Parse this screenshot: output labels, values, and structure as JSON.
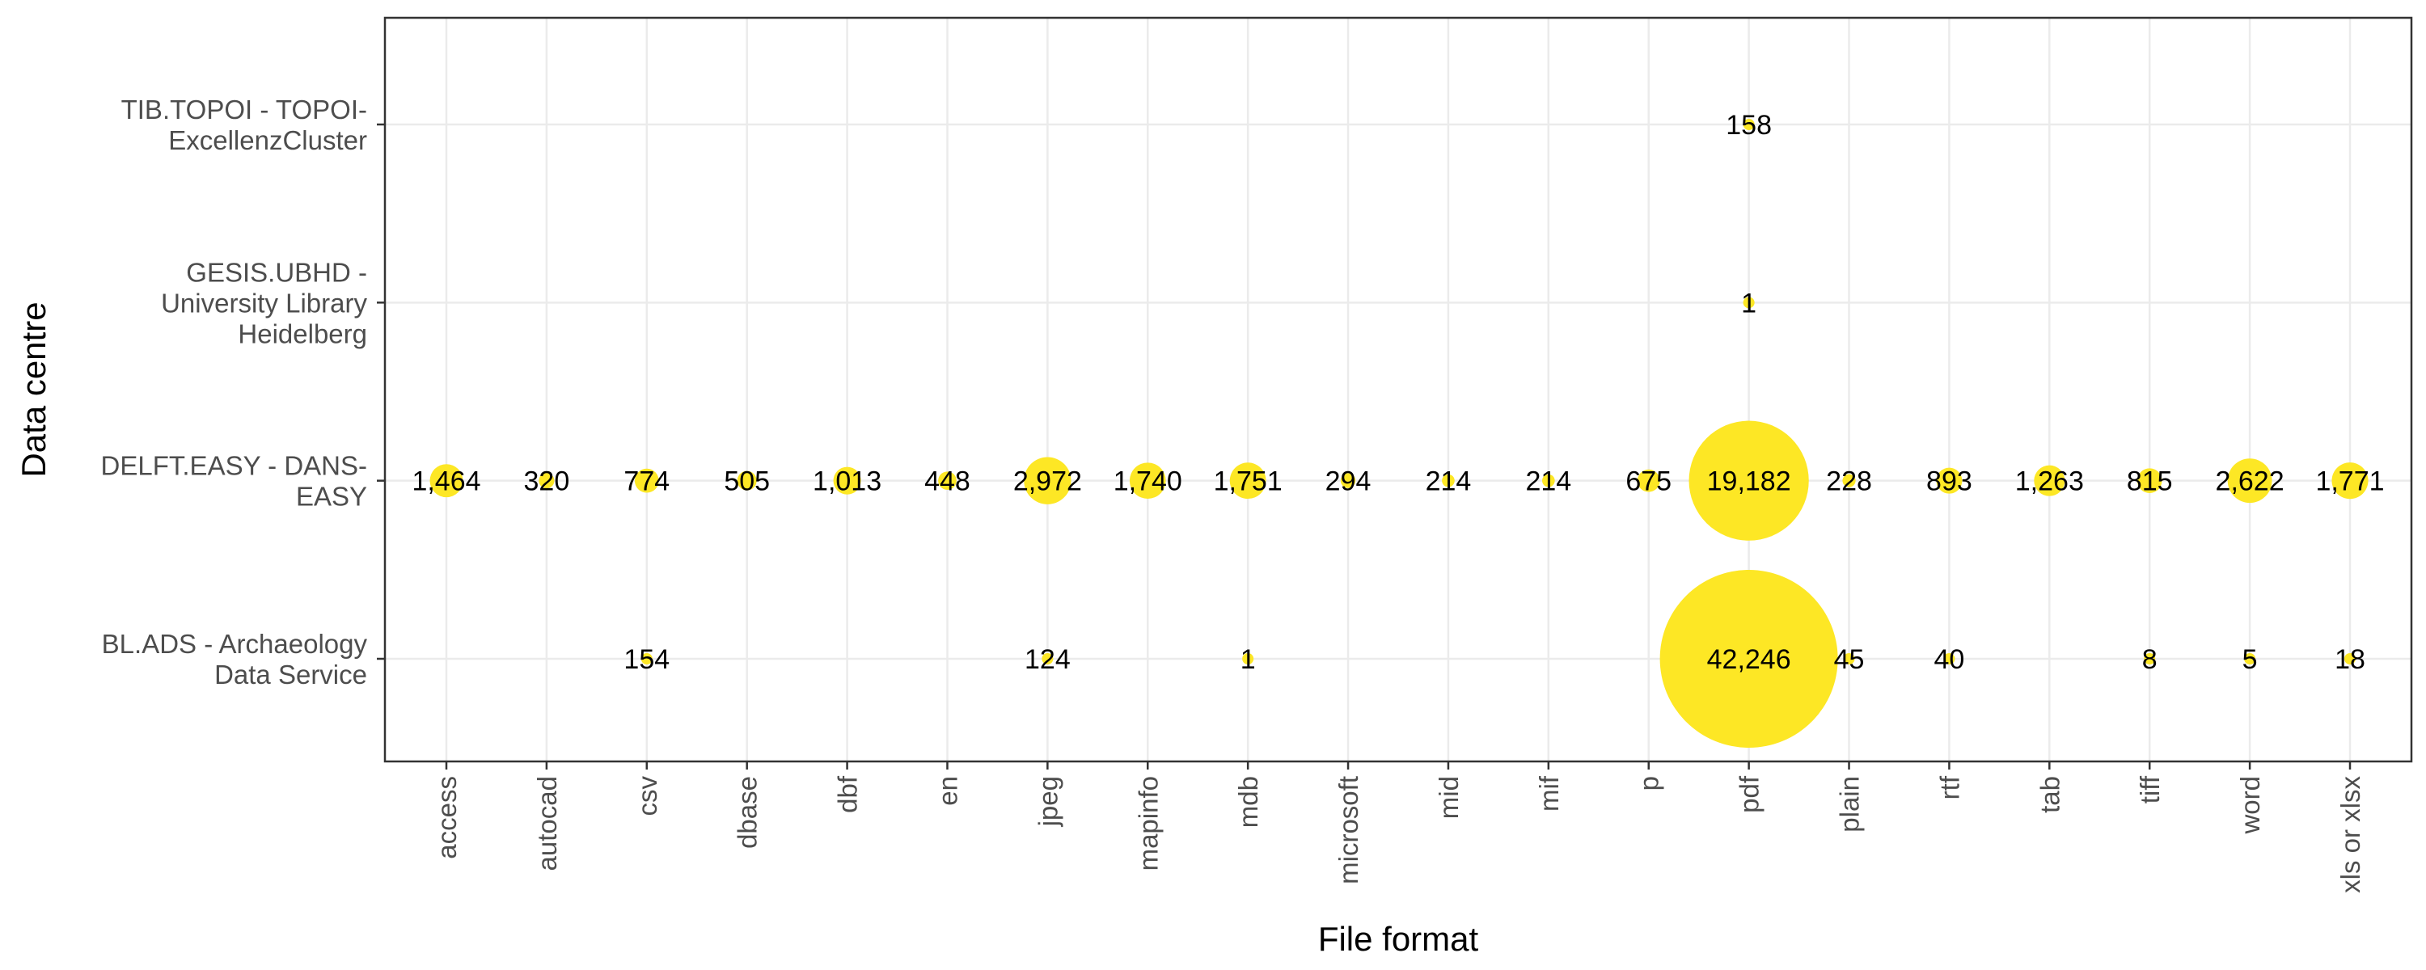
{
  "chart_data": {
    "type": "scatter",
    "xlabel": "File format",
    "ylabel": "Data centre",
    "x_categories": [
      "access",
      "autocad",
      "csv",
      "dbase",
      "dbf",
      "en",
      "jpeg",
      "mapinfo",
      "mdb",
      "microsoft",
      "mid",
      "mif",
      "p",
      "pdf",
      "plain",
      "rtf",
      "tab",
      "tiff",
      "word",
      "xls or xlsx"
    ],
    "y_categories": [
      {
        "name": "BL.ADS - Archaeology Data Service",
        "lines": [
          "BL.ADS - Archaeology",
          "Data Service"
        ]
      },
      {
        "name": "DELFT.EASY - DANS-EASY",
        "lines": [
          "DELFT.EASY - DANS-",
          "EASY"
        ]
      },
      {
        "name": "GESIS.UBHD - University Library Heidelberg",
        "lines": [
          "GESIS.UBHD -",
          "University Library",
          "Heidelberg"
        ]
      },
      {
        "name": "TIB.TOPOI - TOPOI-ExcellenzCluster",
        "lines": [
          "TIB.TOPOI - TOPOI-",
          "ExcellenzCluster"
        ]
      }
    ],
    "points": [
      {
        "x": "csv",
        "y": "BL.ADS - Archaeology Data Service",
        "value": 154,
        "label": "154"
      },
      {
        "x": "jpeg",
        "y": "BL.ADS - Archaeology Data Service",
        "value": 124,
        "label": "124"
      },
      {
        "x": "mdb",
        "y": "BL.ADS - Archaeology Data Service",
        "value": 1,
        "label": "1"
      },
      {
        "x": "pdf",
        "y": "BL.ADS - Archaeology Data Service",
        "value": 42246,
        "label": "42,246"
      },
      {
        "x": "plain",
        "y": "BL.ADS - Archaeology Data Service",
        "value": 45,
        "label": "45"
      },
      {
        "x": "rtf",
        "y": "BL.ADS - Archaeology Data Service",
        "value": 40,
        "label": "40"
      },
      {
        "x": "tiff",
        "y": "BL.ADS - Archaeology Data Service",
        "value": 8,
        "label": "8"
      },
      {
        "x": "word",
        "y": "BL.ADS - Archaeology Data Service",
        "value": 5,
        "label": "5"
      },
      {
        "x": "xls or xlsx",
        "y": "BL.ADS - Archaeology Data Service",
        "value": 18,
        "label": "18"
      },
      {
        "x": "access",
        "y": "DELFT.EASY - DANS-EASY",
        "value": 1464,
        "label": "1,464"
      },
      {
        "x": "autocad",
        "y": "DELFT.EASY - DANS-EASY",
        "value": 320,
        "label": "320"
      },
      {
        "x": "csv",
        "y": "DELFT.EASY - DANS-EASY",
        "value": 774,
        "label": "774"
      },
      {
        "x": "dbase",
        "y": "DELFT.EASY - DANS-EASY",
        "value": 505,
        "label": "505"
      },
      {
        "x": "dbf",
        "y": "DELFT.EASY - DANS-EASY",
        "value": 1013,
        "label": "1,013"
      },
      {
        "x": "en",
        "y": "DELFT.EASY - DANS-EASY",
        "value": 448,
        "label": "448"
      },
      {
        "x": "jpeg",
        "y": "DELFT.EASY - DANS-EASY",
        "value": 2972,
        "label": "2,972"
      },
      {
        "x": "mapinfo",
        "y": "DELFT.EASY - DANS-EASY",
        "value": 1740,
        "label": "1,740"
      },
      {
        "x": "mdb",
        "y": "DELFT.EASY - DANS-EASY",
        "value": 1751,
        "label": "1,751"
      },
      {
        "x": "microsoft",
        "y": "DELFT.EASY - DANS-EASY",
        "value": 294,
        "label": "294"
      },
      {
        "x": "mid",
        "y": "DELFT.EASY - DANS-EASY",
        "value": 214,
        "label": "214"
      },
      {
        "x": "mif",
        "y": "DELFT.EASY - DANS-EASY",
        "value": 214,
        "label": "214"
      },
      {
        "x": "p",
        "y": "DELFT.EASY - DANS-EASY",
        "value": 675,
        "label": "675"
      },
      {
        "x": "pdf",
        "y": "DELFT.EASY - DANS-EASY",
        "value": 19182,
        "label": "19,182"
      },
      {
        "x": "plain",
        "y": "DELFT.EASY - DANS-EASY",
        "value": 228,
        "label": "228"
      },
      {
        "x": "rtf",
        "y": "DELFT.EASY - DANS-EASY",
        "value": 893,
        "label": "893"
      },
      {
        "x": "tab",
        "y": "DELFT.EASY - DANS-EASY",
        "value": 1263,
        "label": "1,263"
      },
      {
        "x": "tiff",
        "y": "DELFT.EASY - DANS-EASY",
        "value": 815,
        "label": "815"
      },
      {
        "x": "word",
        "y": "DELFT.EASY - DANS-EASY",
        "value": 2622,
        "label": "2,622"
      },
      {
        "x": "xls or xlsx",
        "y": "DELFT.EASY - DANS-EASY",
        "value": 1771,
        "label": "1,771"
      },
      {
        "x": "pdf",
        "y": "GESIS.UBHD - University Library Heidelberg",
        "value": 1,
        "label": "1"
      },
      {
        "x": "pdf",
        "y": "TIB.TOPOI - TOPOI-ExcellenzCluster",
        "value": 158,
        "label": "158"
      }
    ],
    "bubble_color": "#FDE725",
    "grid": true,
    "legend": "none"
  }
}
